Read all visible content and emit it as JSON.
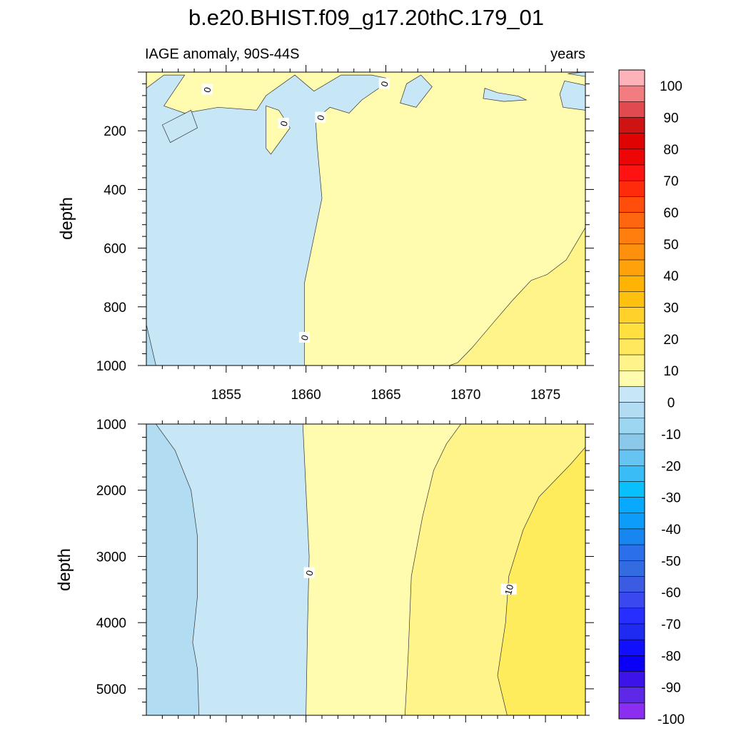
{
  "chart_data": {
    "type": "contour",
    "title": "b.e20.BHIST.f09_g17.20thC.179_01",
    "subtitle_left": "IAGE anomaly, 90S-44S",
    "subtitle_right": "years",
    "x_ticks": [
      "1855",
      "1860",
      "1865",
      "1870",
      "1875"
    ],
    "x_tick_values": [
      1855,
      1860,
      1865,
      1870,
      1875
    ],
    "xlim": [
      1850.0,
      1877.5
    ],
    "panels": [
      {
        "name": "upper",
        "ylabel": "depth",
        "ylim": [
          0,
          1000
        ],
        "y_ticks": [
          "200",
          "400",
          "600",
          "800",
          "1000"
        ],
        "y_tick_values": [
          200,
          400,
          600,
          800,
          1000
        ],
        "contour_labels": [
          {
            "text": "0",
            "x": 1853.8,
            "y": 60
          },
          {
            "text": "0",
            "x": 1864.9,
            "y": 40
          },
          {
            "text": "0",
            "x": 1858.6,
            "y": 175
          },
          {
            "text": "0",
            "x": 1860.9,
            "y": 155
          },
          {
            "text": "0",
            "x": 1859.9,
            "y": 905
          }
        ],
        "regions": [
          {
            "level": "0-5",
            "color": "#fffcb0",
            "points": [
              [
                1850,
                0
              ],
              [
                1877.5,
                0
              ],
              [
                1877.5,
                1000
              ],
              [
                1850,
                1000
              ]
            ]
          },
          {
            "level": "-5-0",
            "color": "#c7e7f7",
            "points": [
              [
                1850,
                55
              ],
              [
                1851.1,
                10
              ],
              [
                1852.4,
                10
              ],
              [
                1851.1,
                115
              ],
              [
                1852.4,
                140
              ],
              [
                1854.5,
                120
              ],
              [
                1856.9,
                130
              ],
              [
                1857.5,
                80
              ],
              [
                1859.3,
                10
              ],
              [
                1860.5,
                65
              ],
              [
                1862.2,
                10
              ],
              [
                1864.1,
                10
              ],
              [
                1865,
                20
              ],
              [
                1864.9,
                30
              ],
              [
                1864.7,
                50
              ],
              [
                1863.5,
                95
              ],
              [
                1862.7,
                140
              ],
              [
                1861.5,
                120
              ],
              [
                1860.6,
                160
              ],
              [
                1860.7,
                250
              ],
              [
                1861,
                430
              ],
              [
                1859.9,
                720
              ],
              [
                1859.9,
                1000
              ],
              [
                1850,
                1000
              ]
            ]
          },
          {
            "level": "-5-0",
            "color": "#c7e7f7",
            "points": [
              [
                1851,
                180
              ],
              [
                1852.8,
                130
              ],
              [
                1853.2,
                190
              ],
              [
                1851.5,
                240
              ]
            ]
          },
          {
            "level": "-5-0",
            "color": "#c7e7f7",
            "points": [
              [
                1867.2,
                10
              ],
              [
                1867.9,
                50
              ],
              [
                1866.9,
                120
              ],
              [
                1865.9,
                105
              ],
              [
                1866.3,
                40
              ]
            ]
          },
          {
            "level": "-5-0",
            "color": "#c7e7f7",
            "points": [
              [
                1871.2,
                55
              ],
              [
                1872.0,
                70
              ],
              [
                1873.3,
                82
              ],
              [
                1873.8,
                95
              ],
              [
                1872.4,
                100
              ],
              [
                1871.1,
                90
              ]
            ]
          },
          {
            "level": "-5-0",
            "color": "#c7e7f7",
            "points": [
              [
                1876.2,
                30
              ],
              [
                1877.5,
                45
              ],
              [
                1877.5,
                130
              ],
              [
                1876.1,
                120
              ],
              [
                1875.9,
                75
              ]
            ]
          },
          {
            "level": "-5-0",
            "color": "#c7e7f7",
            "points": [
              [
                1877.5,
                0
              ],
              [
                1876.4,
                5
              ],
              [
                1877.5,
                15
              ]
            ]
          },
          {
            "level": "0-5",
            "color": "#fffcb0",
            "points": [
              [
                1857.5,
                115
              ],
              [
                1858.3,
                130
              ],
              [
                1859,
                190
              ],
              [
                1857.8,
                280
              ],
              [
                1857.5,
                260
              ]
            ]
          },
          {
            "level": "5-10",
            "color": "#fff48a",
            "points": [
              [
                1877.5,
                530
              ],
              [
                1876.3,
                640
              ],
              [
                1875.1,
                690
              ],
              [
                1874.1,
                710
              ],
              [
                1872.9,
                780
              ],
              [
                1871.8,
                850
              ],
              [
                1870.4,
                940
              ],
              [
                1869.5,
                990
              ],
              [
                1869.0,
                1000
              ],
              [
                1877.5,
                1000
              ]
            ]
          },
          {
            "level": "-10--5",
            "color": "#b2dcf1",
            "points": [
              [
                1850,
                860
              ],
              [
                1850.6,
                1000
              ],
              [
                1850,
                1000
              ]
            ]
          }
        ]
      },
      {
        "name": "lower",
        "ylabel": "depth",
        "ylim": [
          1000,
          5400
        ],
        "y_ticks": [
          "1000",
          "2000",
          "3000",
          "4000",
          "5000"
        ],
        "y_tick_values": [
          1000,
          2000,
          3000,
          4000,
          5000
        ],
        "contour_labels": [
          {
            "text": "0",
            "x": 1860.2,
            "y": 3250
          },
          {
            "text": "10",
            "x": 1872.7,
            "y": 3500
          }
        ],
        "regions": [
          {
            "level": "-5-0",
            "color": "#c7e7f7",
            "points": [
              [
                1850,
                1000
              ],
              [
                1877.5,
                1000
              ],
              [
                1877.5,
                5400
              ],
              [
                1850,
                5400
              ]
            ]
          },
          {
            "level": "-10--5",
            "color": "#b2dcf1",
            "points": [
              [
                1850,
                1000
              ],
              [
                1850.6,
                1000
              ],
              [
                1851.8,
                1400
              ],
              [
                1852.8,
                2000
              ],
              [
                1853.2,
                2700
              ],
              [
                1853.2,
                3600
              ],
              [
                1852.9,
                4300
              ],
              [
                1853.2,
                4700
              ],
              [
                1853.3,
                5400
              ],
              [
                1850,
                5400
              ]
            ]
          },
          {
            "level": "0-5",
            "color": "#fffcb0",
            "points": [
              [
                1859.8,
                1000
              ],
              [
                1877.5,
                1000
              ],
              [
                1877.5,
                5400
              ],
              [
                1860,
                5400
              ],
              [
                1860.1,
                4000
              ],
              [
                1860.2,
                3000
              ],
              [
                1860,
                2000
              ]
            ]
          },
          {
            "level": "5-10",
            "color": "#fff48a",
            "points": [
              [
                1869.7,
                1000
              ],
              [
                1877.5,
                1000
              ],
              [
                1877.5,
                5400
              ],
              [
                1866.2,
                5400
              ],
              [
                1866.4,
                4500
              ],
              [
                1866.6,
                3300
              ],
              [
                1867.3,
                2400
              ],
              [
                1868.0,
                1700
              ],
              [
                1868.8,
                1300
              ]
            ]
          },
          {
            "level": "10-15",
            "color": "#ffec5c",
            "points": [
              [
                1877.5,
                1350
              ],
              [
                1876.6,
                1600
              ],
              [
                1874.6,
                2100
              ],
              [
                1873.6,
                2600
              ],
              [
                1872.7,
                3300
              ],
              [
                1872.5,
                4000
              ],
              [
                1872.0,
                4800
              ],
              [
                1872.4,
                5200
              ],
              [
                1872.6,
                5400
              ],
              [
                1877.5,
                5400
              ]
            ]
          }
        ]
      }
    ],
    "colorbar": {
      "labels": [
        "100",
        "90",
        "80",
        "70",
        "60",
        "50",
        "40",
        "30",
        "20",
        "10",
        "0",
        "-10",
        "-20",
        "-30",
        "-40",
        "-50",
        "-60",
        "-70",
        "-80",
        "-90",
        "-100"
      ],
      "label_values": [
        100,
        90,
        80,
        70,
        60,
        50,
        40,
        30,
        20,
        10,
        0,
        -10,
        -20,
        -30,
        -40,
        -50,
        -60,
        -70,
        -80,
        -90,
        -100
      ],
      "colors": [
        "#fdb3b9",
        "#f27d80",
        "#e14b4f",
        "#cf1212",
        "#df0303",
        "#ee0606",
        "#ff1212",
        "#ff2b0b",
        "#ff4d0c",
        "#ff6610",
        "#ff7e0e",
        "#ff900d",
        "#ffa10b",
        "#ffb304",
        "#ffc110",
        "#ffd12a",
        "#ffe03f",
        "#ffe85e",
        "#fff48a",
        "#fffcb0",
        "#c7e7f7",
        "#b2dcf1",
        "#9dd6f0",
        "#8bc8ea",
        "#66c4f2",
        "#3abcf6",
        "#08c0fb",
        "#09a9ff",
        "#0d9cf9",
        "#1786f0",
        "#2b70ea",
        "#326ce0",
        "#3b5ce2",
        "#3a49ef",
        "#262fff",
        "#1f2bf0",
        "#1010ff",
        "#0a00f6",
        "#3c14ea",
        "#5e29e6",
        "#8c2ef2"
      ]
    }
  }
}
